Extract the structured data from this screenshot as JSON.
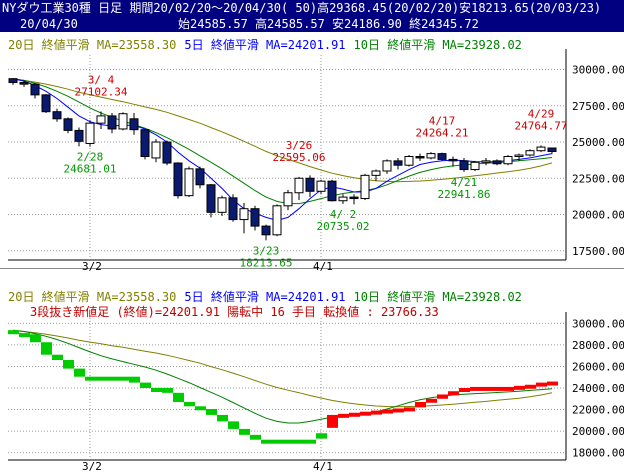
{
  "header": {
    "title": "NYダウ工業30種 日足 期間20/02/20～20/04/30( 50)高29368.45(20/02/20)安18213.65(20/03/23)",
    "date": "20/04/30",
    "ohlc": "始24585.57 高24585.57 安24186.90 終24345.72"
  },
  "top_legend": {
    "ma20": "20日 終値平滑 MA=23558.30",
    "ma5": "5日 終値平滑 MA=24201.91",
    "ma10": "10日 終値平滑 MA=23928.02"
  },
  "bottom_legend": {
    "ma20": "20日 終値平滑 MA=23558.30",
    "ma5": "5日 終値平滑 MA=24201.91",
    "ma10": "10日 終値平滑 MA=23928.02",
    "sanpan": "3段抜き新値足 (終値)=24201.91 陽転中 16 手目 転換値 : 23766.33"
  },
  "colors": {
    "header_bg": "#000080",
    "ma20": "#808000",
    "ma5": "#0000ff",
    "ma10": "#008000",
    "up_box": "#ff0000",
    "down_box": "#00cc00",
    "annot_high": "#cc0000",
    "annot_low": "#009900",
    "candle_up": "#ffffff",
    "candle_down": "#0a1a6e"
  },
  "chart_data": [
    {
      "type": "candlestick",
      "ylim": [
        17000,
        31000
      ],
      "yticks": [
        17500,
        20000,
        22500,
        25000,
        27500,
        30000
      ],
      "ytick_labels": [
        "17500.00",
        "20000.00",
        "22500.00",
        "25000.00",
        "27500.00",
        "30000.00"
      ],
      "x_labels": [
        {
          "index": 7,
          "label": "3/2"
        },
        {
          "index": 28,
          "label": "4/1"
        }
      ],
      "candles": [
        [
          29368,
          29368,
          28940,
          29100
        ],
        [
          29100,
          29250,
          28800,
          28990
        ],
        [
          28990,
          29050,
          28000,
          28250
        ],
        [
          28250,
          28300,
          27000,
          27090
        ],
        [
          27090,
          27300,
          26400,
          26600
        ],
        [
          26600,
          26700,
          25600,
          25800
        ],
        [
          25800,
          26000,
          24700,
          25050
        ],
        [
          24900,
          26500,
          24681,
          26300
        ],
        [
          26300,
          27102,
          25900,
          26800
        ],
        [
          26800,
          27000,
          25600,
          25900
        ],
        [
          25900,
          27050,
          25800,
          26950
        ],
        [
          26600,
          27000,
          25500,
          25850
        ],
        [
          25850,
          25900,
          23800,
          24000
        ],
        [
          23900,
          25200,
          23600,
          25000
        ],
        [
          25000,
          25100,
          23400,
          23550
        ],
        [
          23550,
          23600,
          21100,
          21300
        ],
        [
          21300,
          23300,
          21200,
          23150
        ],
        [
          23150,
          23300,
          21800,
          22050
        ],
        [
          22050,
          22100,
          19800,
          20150
        ],
        [
          20150,
          21300,
          19900,
          21150
        ],
        [
          21150,
          21400,
          19500,
          19650
        ],
        [
          19650,
          20800,
          18700,
          20400
        ],
        [
          20400,
          20600,
          18900,
          19200
        ],
        [
          19200,
          19300,
          18213,
          18600
        ],
        [
          18600,
          20700,
          18500,
          20600
        ],
        [
          20600,
          21700,
          20300,
          21500
        ],
        [
          21500,
          22595,
          21000,
          22500
        ],
        [
          22500,
          22700,
          21200,
          21600
        ],
        [
          21600,
          22400,
          21400,
          22300
        ],
        [
          22300,
          22400,
          20900,
          20950
        ],
        [
          20950,
          21400,
          20735,
          21200
        ],
        [
          21200,
          21400,
          20700,
          21100
        ],
        [
          21100,
          22800,
          21000,
          22700
        ],
        [
          22700,
          23100,
          22300,
          23000
        ],
        [
          23000,
          23800,
          22800,
          23700
        ],
        [
          23700,
          23900,
          23100,
          23400
        ],
        [
          23400,
          24100,
          23300,
          24000
        ],
        [
          24000,
          24200,
          23700,
          23900
        ],
        [
          23900,
          24300,
          23800,
          24200
        ],
        [
          24200,
          24264,
          23700,
          23800
        ],
        [
          23800,
          24000,
          23300,
          23700
        ],
        [
          23700,
          23900,
          22941,
          23100
        ],
        [
          23100,
          23700,
          23000,
          23600
        ],
        [
          23600,
          23900,
          23400,
          23700
        ],
        [
          23700,
          23800,
          23400,
          23500
        ],
        [
          23500,
          24100,
          23400,
          24000
        ],
        [
          24000,
          24200,
          23700,
          24100
        ],
        [
          24100,
          24500,
          24000,
          24400
        ],
        [
          24400,
          24764,
          24300,
          24650
        ],
        [
          24585,
          24585,
          24186,
          24345
        ]
      ],
      "ma20": [
        29368,
        29250,
        29130,
        28990,
        28830,
        28640,
        28430,
        28260,
        28100,
        27930,
        27780,
        27600,
        27420,
        27250,
        27050,
        26800,
        26550,
        26300,
        25990,
        25700,
        25380,
        25050,
        24700,
        24350,
        24050,
        23800,
        23560,
        23300,
        23070,
        22850,
        22680,
        22530,
        22420,
        22330,
        22280,
        22260,
        22280,
        22310,
        22360,
        22420,
        22500,
        22580,
        22670,
        22760,
        22860,
        22950,
        23050,
        23180,
        23350,
        23558
      ],
      "ma5": [
        29368,
        29200,
        28900,
        28500,
        28000,
        27400,
        26800,
        26400,
        26200,
        26100,
        26150,
        26150,
        25900,
        25500,
        25000,
        24300,
        23700,
        23200,
        22500,
        21800,
        21000,
        20400,
        20100,
        19800,
        19600,
        19800,
        20400,
        21100,
        21700,
        21900,
        21750,
        21550,
        21550,
        21800,
        22300,
        22700,
        23100,
        23450,
        23600,
        23700,
        23750,
        23720,
        23650,
        23620,
        23650,
        23720,
        23800,
        23900,
        24050,
        24201
      ],
      "ma10": [
        29368,
        29250,
        29050,
        28800,
        28500,
        28150,
        27750,
        27350,
        27000,
        26700,
        26450,
        26200,
        25950,
        25650,
        25300,
        24900,
        24500,
        24050,
        23600,
        23150,
        22650,
        22150,
        21650,
        21200,
        20900,
        20750,
        20750,
        20900,
        21100,
        21300,
        21450,
        21550,
        21650,
        21800,
        22050,
        22350,
        22650,
        22900,
        23100,
        23250,
        23350,
        23420,
        23480,
        23530,
        23580,
        23640,
        23700,
        23780,
        23850,
        23928
      ],
      "annotations": [
        {
          "index": 8,
          "lines": [
            "3/ 4",
            "27102.34"
          ],
          "kind": "high"
        },
        {
          "index": 7,
          "lines": [
            "2/28",
            "24681.01"
          ],
          "kind": "low"
        },
        {
          "index": 26,
          "lines": [
            "3/26",
            "22595.06"
          ],
          "kind": "high"
        },
        {
          "index": 23,
          "lines": [
            "3/23",
            "18213.65"
          ],
          "kind": "low"
        },
        {
          "index": 30,
          "lines": [
            "4/ 2",
            "20735.02"
          ],
          "kind": "low"
        },
        {
          "index": 39,
          "lines": [
            "4/17",
            "24264.21"
          ],
          "kind": "high"
        },
        {
          "index": 41,
          "lines": [
            "4/21",
            "22941.86"
          ],
          "kind": "low"
        },
        {
          "index": 48,
          "lines": [
            "4/29",
            "24764.77"
          ],
          "kind": "high"
        }
      ]
    },
    {
      "type": "three-line-break",
      "ylim": [
        17500,
        30500
      ],
      "yticks": [
        18000,
        20000,
        22000,
        24000,
        26000,
        28000,
        30000
      ],
      "ytick_labels": [
        "18000.00",
        "20000.00",
        "22000.00",
        "24000.00",
        "26000.00",
        "28000.00",
        "30000.00"
      ],
      "x_labels": [
        {
          "index": 7,
          "label": "3/2"
        },
        {
          "index": 28,
          "label": "4/1"
        }
      ],
      "boxes": [
        {
          "index": 0,
          "from": 29368,
          "to": 29100,
          "up": false
        },
        {
          "index": 1,
          "from": 29100,
          "to": 28990,
          "up": false
        },
        {
          "index": 2,
          "from": 28990,
          "to": 28250,
          "up": false
        },
        {
          "index": 3,
          "from": 28250,
          "to": 27090,
          "up": false
        },
        {
          "index": 4,
          "from": 27090,
          "to": 26600,
          "up": false
        },
        {
          "index": 5,
          "from": 26600,
          "to": 25800,
          "up": false
        },
        {
          "index": 6,
          "from": 25800,
          "to": 25050,
          "up": false
        },
        {
          "index": 7,
          "from": 25050,
          "to": 25050,
          "up": false
        },
        {
          "index": 8,
          "from": 25050,
          "to": 25050,
          "up": false
        },
        {
          "index": 9,
          "from": 25050,
          "to": 25050,
          "up": false
        },
        {
          "index": 10,
          "from": 25050,
          "to": 25050,
          "up": false
        },
        {
          "index": 11,
          "from": 25050,
          "to": 24500,
          "up": false
        },
        {
          "index": 12,
          "from": 24500,
          "to": 24000,
          "up": false
        },
        {
          "index": 13,
          "from": 24000,
          "to": 24000,
          "up": false
        },
        {
          "index": 14,
          "from": 24000,
          "to": 23550,
          "up": false
        },
        {
          "index": 15,
          "from": 23550,
          "to": 22700,
          "up": false
        },
        {
          "index": 16,
          "from": 22700,
          "to": 22300,
          "up": false
        },
        {
          "index": 17,
          "from": 22300,
          "to": 22050,
          "up": false
        },
        {
          "index": 18,
          "from": 22050,
          "to": 21500,
          "up": false
        },
        {
          "index": 19,
          "from": 21500,
          "to": 20900,
          "up": false
        },
        {
          "index": 20,
          "from": 20900,
          "to": 20200,
          "up": false
        },
        {
          "index": 21,
          "from": 20200,
          "to": 19650,
          "up": false
        },
        {
          "index": 22,
          "from": 19650,
          "to": 19200,
          "up": false
        },
        {
          "index": 23,
          "from": 19200,
          "to": 18900,
          "up": false
        },
        {
          "index": 24,
          "from": 19200,
          "to": 18900,
          "up": false
        },
        {
          "index": 25,
          "from": 19200,
          "to": 18900,
          "up": false
        },
        {
          "index": 26,
          "from": 19200,
          "to": 18900,
          "up": false
        },
        {
          "index": 27,
          "from": 19200,
          "to": 18900,
          "up": false
        },
        {
          "index": 28,
          "from": 19800,
          "to": 19300,
          "up": false
        },
        {
          "index": 29,
          "from": 20300,
          "to": 21500,
          "up": true
        },
        {
          "index": 30,
          "from": 21500,
          "to": 21600,
          "up": true
        },
        {
          "index": 31,
          "from": 21600,
          "to": 21700,
          "up": true
        },
        {
          "index": 32,
          "from": 21700,
          "to": 21800,
          "up": true
        },
        {
          "index": 33,
          "from": 21800,
          "to": 21900,
          "up": true
        },
        {
          "index": 34,
          "from": 21900,
          "to": 22000,
          "up": true
        },
        {
          "index": 35,
          "from": 22000,
          "to": 22100,
          "up": true
        },
        {
          "index": 36,
          "from": 22100,
          "to": 22200,
          "up": true
        },
        {
          "index": 37,
          "from": 22200,
          "to": 22700,
          "up": true
        },
        {
          "index": 38,
          "from": 22700,
          "to": 23000,
          "up": true
        },
        {
          "index": 39,
          "from": 23000,
          "to": 23400,
          "up": true
        },
        {
          "index": 40,
          "from": 23400,
          "to": 23700,
          "up": true
        },
        {
          "index": 41,
          "from": 23700,
          "to": 24000,
          "up": true
        },
        {
          "index": 42,
          "from": 24000,
          "to": 24100,
          "up": true
        },
        {
          "index": 43,
          "from": 24000,
          "to": 24100,
          "up": true
        },
        {
          "index": 44,
          "from": 24000,
          "to": 24100,
          "up": true
        },
        {
          "index": 45,
          "from": 24000,
          "to": 24100,
          "up": true
        },
        {
          "index": 46,
          "from": 24000,
          "to": 24200,
          "up": true
        },
        {
          "index": 47,
          "from": 24100,
          "to": 24300,
          "up": true
        },
        {
          "index": 48,
          "from": 24200,
          "to": 24500,
          "up": true
        },
        {
          "index": 49,
          "from": 24300,
          "to": 24600,
          "up": true
        }
      ]
    }
  ]
}
